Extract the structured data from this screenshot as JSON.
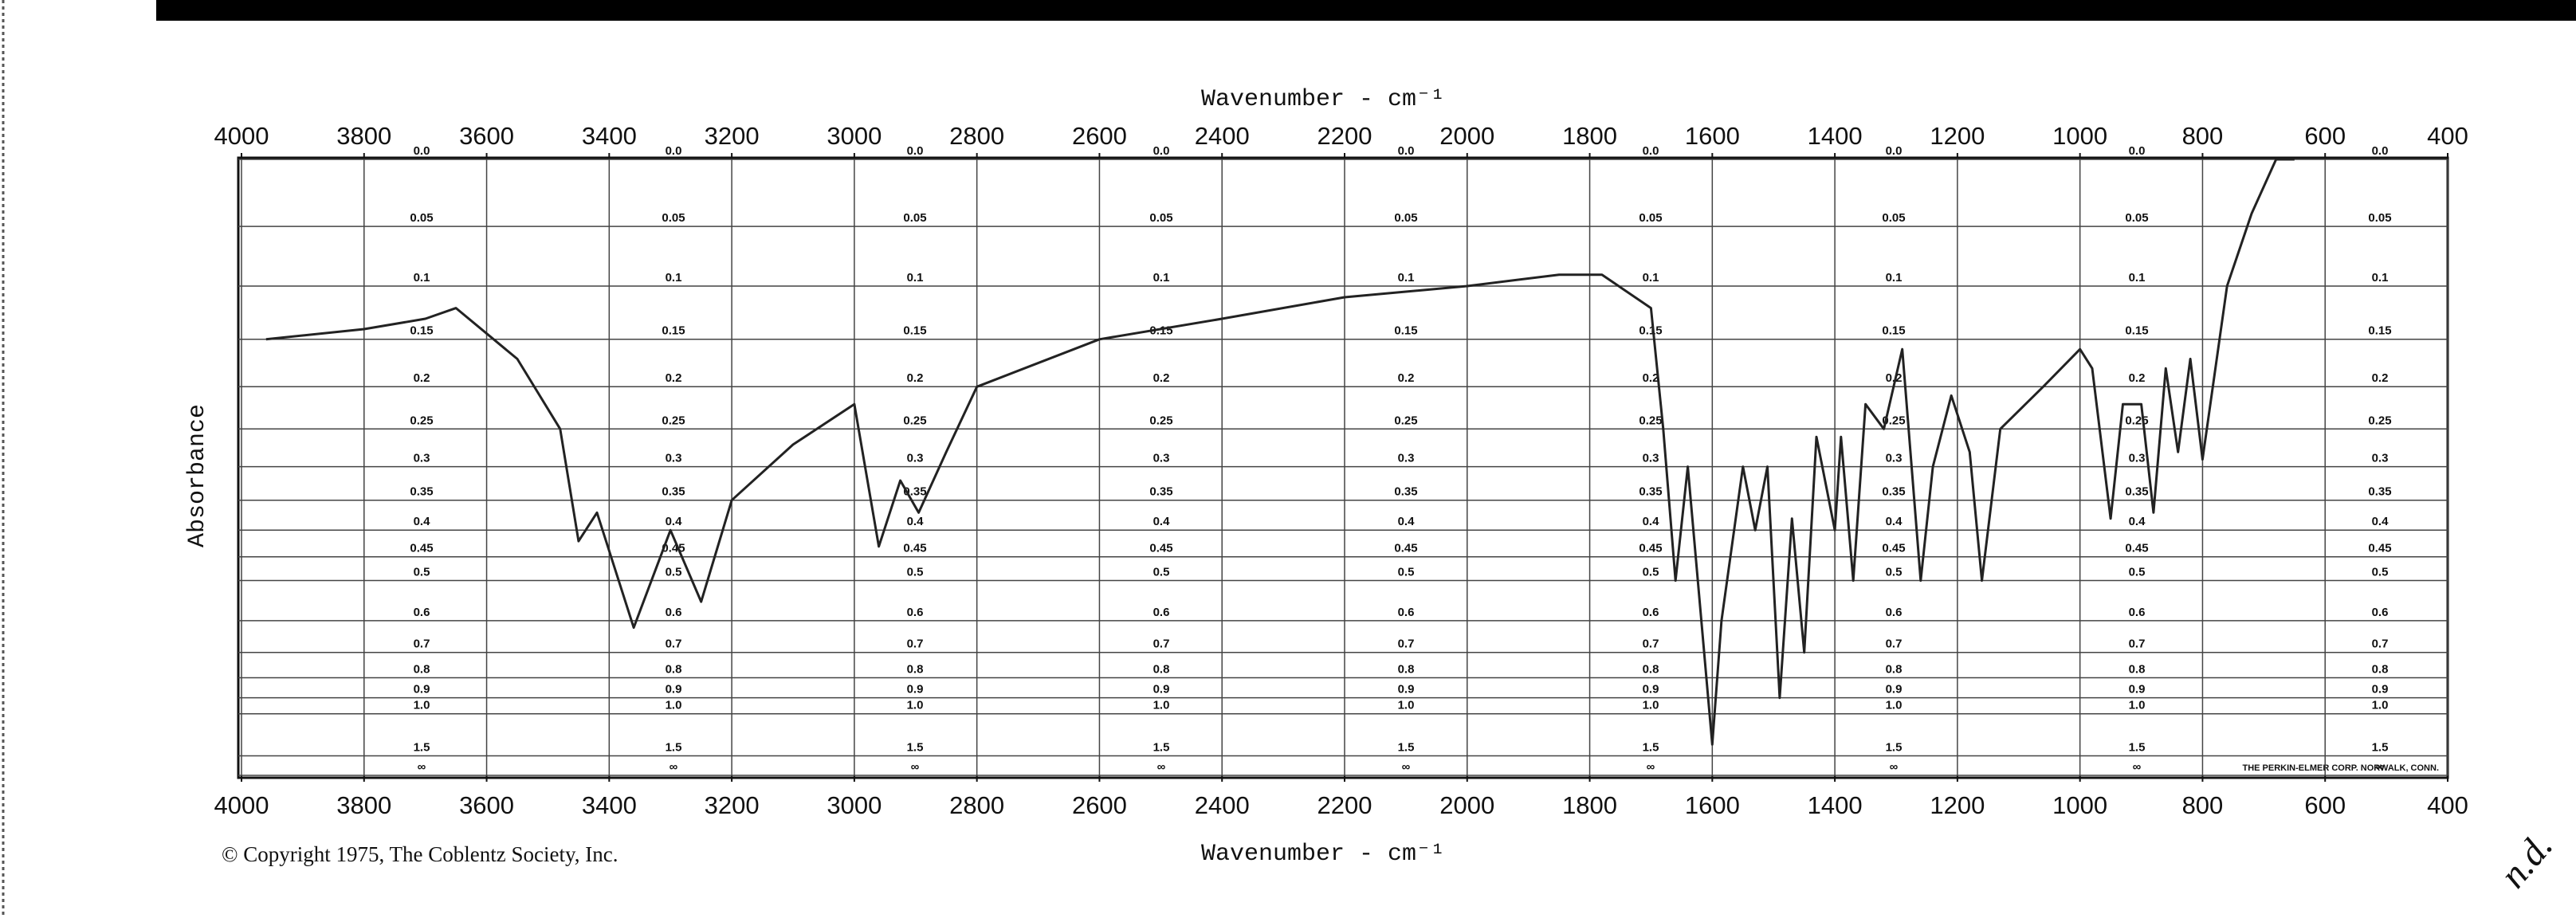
{
  "chart_data": {
    "type": "line",
    "x_label": "Wavenumber - cm⁻¹",
    "y_label": "Absorbance",
    "copyright": "© Copyright 1975, The Coblentz Society, Inc.",
    "maker_stamp": "THE PERKIN-ELMER CORP. NORWALK, CONN.",
    "handwritten_note": "n.d.",
    "color": "#222222",
    "grid": true,
    "yscale": "transmittance",
    "xlim": [
      4000,
      400
    ],
    "ylim": [
      0,
      null
    ],
    "xticks": [
      4000,
      3800,
      3600,
      3400,
      3200,
      3000,
      2800,
      2600,
      2400,
      2200,
      2000,
      1800,
      1600,
      1400,
      1200,
      1000,
      800,
      600,
      400
    ],
    "yticks": [
      {
        "value": 0,
        "label": "0.0"
      },
      0.05,
      0.1,
      0.15,
      0.2,
      0.25,
      0.3,
      0.35,
      0.4,
      0.45,
      0.5,
      0.6,
      0.7,
      0.8,
      0.9,
      {
        "value": 1,
        "label": "1.0"
      },
      1.5,
      {
        "value": null,
        "label": "∞"
      }
    ],
    "x": [
      3960,
      3800,
      3700,
      3650,
      3550,
      3480,
      3450,
      3420,
      3360,
      3300,
      3250,
      3200,
      3100,
      3000,
      2960,
      2925,
      2895,
      2850,
      2800,
      2600,
      2400,
      2200,
      2000,
      1850,
      1780,
      1700,
      1680,
      1660,
      1640,
      1600,
      1585,
      1550,
      1530,
      1510,
      1490,
      1470,
      1450,
      1430,
      1400,
      1390,
      1370,
      1350,
      1320,
      1290,
      1260,
      1240,
      1210,
      1180,
      1160,
      1130,
      1060,
      1000,
      980,
      950,
      930,
      900,
      880,
      860,
      840,
      820,
      800,
      760,
      720,
      680,
      650
    ],
    "values": [
      0.15,
      0.14,
      0.13,
      0.12,
      0.17,
      0.25,
      0.42,
      0.37,
      0.62,
      0.4,
      0.55,
      0.35,
      0.27,
      0.22,
      0.43,
      0.32,
      0.37,
      0.28,
      0.2,
      0.15,
      0.13,
      0.11,
      0.1,
      0.09,
      0.09,
      0.12,
      0.25,
      0.5,
      0.3,
      1.3,
      0.6,
      0.3,
      0.4,
      0.3,
      0.9,
      0.38,
      0.7,
      0.26,
      0.4,
      0.26,
      0.5,
      0.22,
      0.25,
      0.16,
      0.5,
      0.3,
      0.21,
      0.28,
      0.5,
      0.25,
      0.2,
      0.16,
      0.18,
      0.38,
      0.22,
      0.22,
      0.37,
      0.18,
      0.28,
      0.17,
      0.29,
      0.1,
      0.04,
      0,
      0
    ]
  }
}
